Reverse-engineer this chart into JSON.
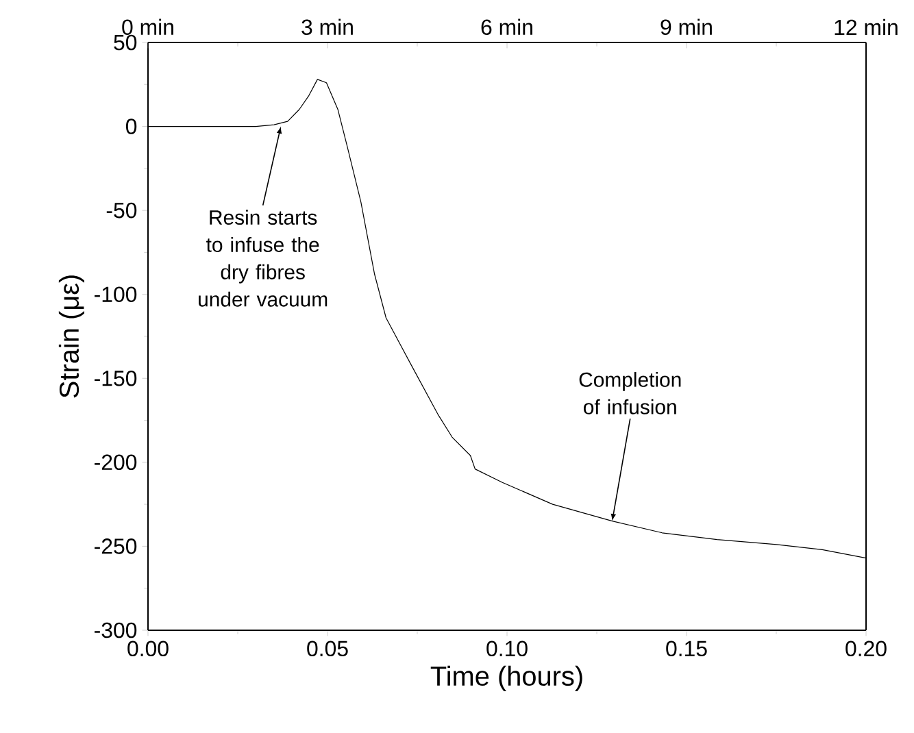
{
  "chart_data": {
    "type": "line",
    "xlabel": "Time (hours)",
    "ylabel": "Strain (με)",
    "x": [
      0,
      0.01,
      0.02,
      0.03,
      0.0351,
      0.0389,
      0.0421,
      0.0447,
      0.0472,
      0.0497,
      0.0529,
      0.0555,
      0.0593,
      0.0631,
      0.0663,
      0.0733,
      0.0809,
      0.0847,
      0.0898,
      0.0911,
      0.0987,
      0.1127,
      0.1293,
      0.1432,
      0.1585,
      0.1751,
      0.1878,
      0.2
    ],
    "values": [
      0,
      0,
      0,
      0,
      1,
      3,
      10,
      18,
      28,
      26,
      10,
      -12,
      -45,
      -88,
      -114,
      -142,
      -172,
      -185,
      -196,
      -204,
      -212,
      -225,
      -235,
      -242,
      -246,
      -249,
      -252,
      -257
    ],
    "color": "#000000",
    "marker": "none",
    "line_style": "solid",
    "xlim": [
      0,
      0.2
    ],
    "xticks": [
      {
        "value": 0,
        "label": "0.00"
      },
      {
        "value": 0.05,
        "label": "0.05"
      },
      {
        "value": 0.1,
        "label": "0.10"
      },
      {
        "value": 0.15,
        "label": "0.15"
      },
      {
        "value": 0.2,
        "label": "0.20"
      }
    ],
    "ylim": [
      -300,
      50
    ],
    "yticks": [
      -300,
      -250,
      -200,
      -150,
      -100,
      -50,
      0,
      50
    ],
    "x2lim": [
      0,
      12
    ],
    "x2ticks": [
      {
        "value": 0,
        "label": "0 min"
      },
      {
        "value": 3,
        "label": "3 min"
      },
      {
        "value": 6,
        "label": "6 min"
      },
      {
        "value": 9,
        "label": "9 min"
      },
      {
        "value": 12,
        "label": "12 min"
      }
    ],
    "annotations": [
      {
        "text": "Resin starts to infuse the dry fibres under vacuum",
        "x": 0.037,
        "y": 0
      },
      {
        "text": "Completion of infusion",
        "x": 0.1293,
        "y": -235
      }
    ]
  }
}
